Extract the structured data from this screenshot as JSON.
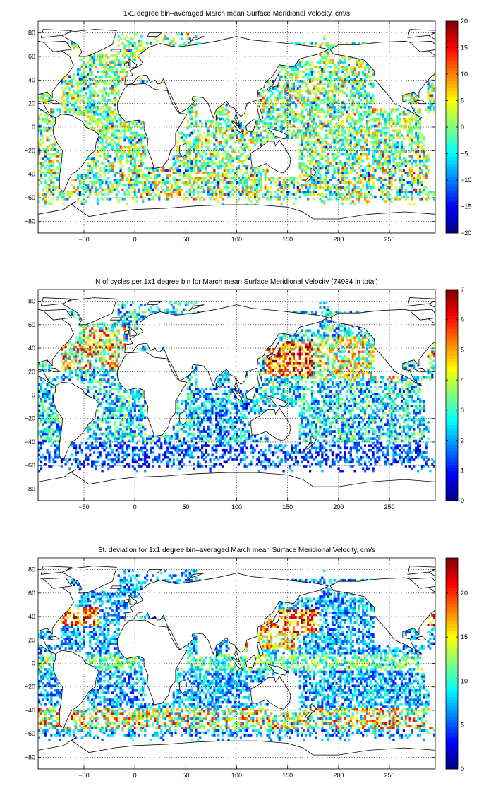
{
  "figure": {
    "background": "#ffffff",
    "land_color": "#ffffff",
    "coast_color": "#000000",
    "grid_color": "#000000",
    "colormap": "jet"
  },
  "chart_data": [
    {
      "type": "heatmap",
      "title": "1x1 degree bin–averaged March mean Surface Meridional Velocity, cm/s",
      "xlabel": "",
      "ylabel": "",
      "xlim": [
        -95,
        295
      ],
      "ylim": [
        -90,
        90
      ],
      "xticks": [
        -50,
        0,
        50,
        100,
        150,
        200,
        250
      ],
      "yticks": [
        -80,
        -60,
        -40,
        -20,
        0,
        20,
        40,
        60,
        80
      ],
      "grid": true,
      "colorbar": {
        "min": -20,
        "max": 20,
        "ticks": [
          20,
          15,
          10,
          5,
          0,
          -5,
          -10,
          -15,
          -20
        ],
        "placement": "right"
      },
      "field": "surface meridional velocity (noisy, both signs)"
    },
    {
      "type": "heatmap",
      "title": "N of cycles per 1x1 degree bin for March mean Surface Meridional Velocity (74934 in total)",
      "xlabel": "",
      "ylabel": "",
      "xlim": [
        -95,
        295
      ],
      "ylim": [
        -90,
        90
      ],
      "xticks": [
        -50,
        0,
        50,
        100,
        150,
        200,
        250
      ],
      "yticks": [
        -80,
        -60,
        -40,
        -20,
        0,
        20,
        40,
        60,
        80
      ],
      "grid": true,
      "colorbar": {
        "min": 0,
        "max": 7,
        "ticks": [
          7,
          6,
          5,
          4,
          3,
          2,
          1,
          0
        ],
        "placement": "right"
      },
      "field": "number of cycles per bin (high in NW Pacific and N Atlantic, low in Southern Ocean)"
    },
    {
      "type": "heatmap",
      "title": "St. deviation for 1x1 degree bin–averaged March mean Surface Meridional Velocity, cm/s",
      "xlabel": "",
      "ylabel": "",
      "xlim": [
        -95,
        295
      ],
      "ylim": [
        -90,
        90
      ],
      "xticks": [
        -50,
        0,
        50,
        100,
        150,
        200,
        250
      ],
      "yticks": [
        -80,
        -60,
        -40,
        -20,
        0,
        20,
        40,
        60,
        80
      ],
      "grid": true,
      "colorbar": {
        "min": 0,
        "max": 24,
        "ticks": [
          20,
          15,
          10,
          5,
          0
        ],
        "placement": "right"
      },
      "field": "standard deviation (high in Kuroshio, Gulf Stream, ACC)"
    }
  ]
}
